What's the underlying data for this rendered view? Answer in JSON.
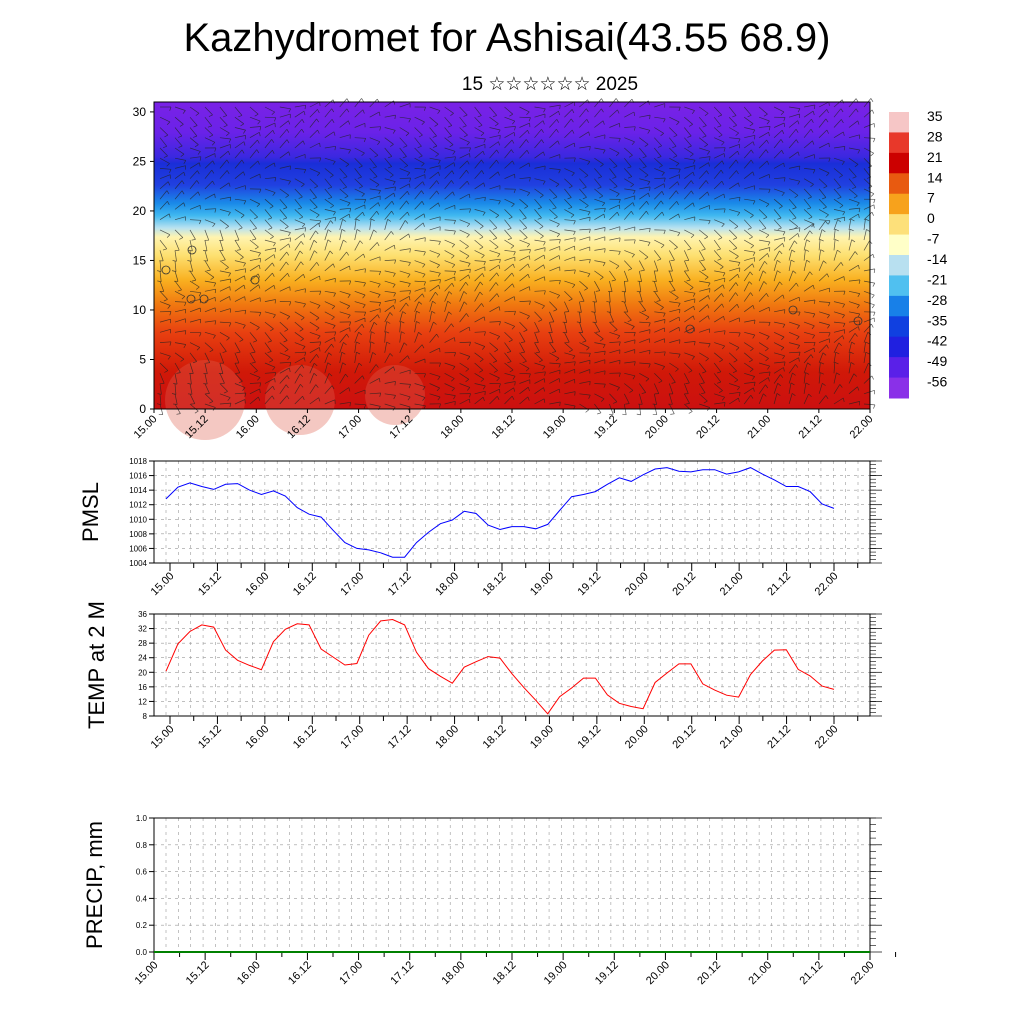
{
  "title": "Kazhydromet for Ashisai(43.55 68.9)",
  "subtitle": "15 ☆☆☆☆☆☆ 2025",
  "chart_data": [
    {
      "type": "heatmap",
      "description_variable": "temperature cross-section with wind barbs",
      "x_tick_labels": [
        "15.00",
        "15.12",
        "16.00",
        "16.12",
        "17.00",
        "17.12",
        "18.00",
        "18.12",
        "19.00",
        "19.12",
        "20.00",
        "20.12",
        "21.00",
        "21.12",
        "22.00"
      ],
      "y_ticks": [
        0,
        5,
        10,
        15,
        20,
        25,
        30
      ],
      "ylim": [
        0,
        31
      ],
      "colorbar_labels": [
        "35",
        "28",
        "21",
        "14",
        "7",
        "0",
        "-7",
        "-14",
        "-21",
        "-28",
        "-35",
        "-42",
        "-49",
        "-56"
      ],
      "colors": [
        "#f6c6c6",
        "#e8382a",
        "#cc0000",
        "#e85a10",
        "#f7a21c",
        "#fde07a",
        "#ffffc8",
        "#b8e0f0",
        "#50c0f0",
        "#1880e8",
        "#1040e0",
        "#2020e0",
        "#5a20e8",
        "#8a30e8"
      ]
    },
    {
      "type": "line",
      "ylabel": "PMSL",
      "x_tick_labels": [
        "15.00",
        "15.12",
        "16.00",
        "16.12",
        "17.00",
        "17.12",
        "18.00",
        "18.12",
        "19.00",
        "19.12",
        "20.00",
        "20.12",
        "21.00",
        "21.12",
        "22.00"
      ],
      "y_ticks": [
        1004,
        1006,
        1008,
        1010,
        1012,
        1014,
        1016,
        1018
      ],
      "ylim": [
        1004,
        1018
      ],
      "series": [
        {
          "color": "#0000ff",
          "values": [
            1012.8,
            1014.4,
            1015.0,
            1014.5,
            1014.1,
            1014.8,
            1014.9,
            1014.0,
            1013.4,
            1013.9,
            1013.2,
            1011.6,
            1010.7,
            1010.3,
            1008.5,
            1006.8,
            1006.0,
            1005.8,
            1005.4,
            1004.8,
            1004.8,
            1006.8,
            1008.2,
            1009.4,
            1009.9,
            1011.1,
            1010.8,
            1009.2,
            1008.6,
            1009.0,
            1009.0,
            1008.7,
            1009.3,
            1011.2,
            1013.1,
            1013.4,
            1013.8,
            1014.8,
            1015.7,
            1015.2,
            1016.1,
            1016.9,
            1017.1,
            1016.6,
            1016.5,
            1016.8,
            1016.8,
            1016.2,
            1016.5,
            1017.1,
            1016.2,
            1015.4,
            1014.5,
            1014.5,
            1013.8,
            1012.1,
            1011.5
          ]
        }
      ]
    },
    {
      "type": "line",
      "ylabel": "TEMP at 2 M",
      "x_tick_labels": [
        "15.00",
        "15.12",
        "16.00",
        "16.12",
        "17.00",
        "17.12",
        "18.00",
        "18.12",
        "19.00",
        "19.12",
        "20.00",
        "20.12",
        "21.00",
        "21.12",
        "22.00"
      ],
      "y_ticks": [
        8,
        12,
        16,
        20,
        24,
        28,
        32,
        36
      ],
      "ylim": [
        8,
        36
      ],
      "series": [
        {
          "color": "#ff0000",
          "values": [
            20.3,
            27.8,
            31.2,
            33.0,
            32.4,
            26.1,
            23.3,
            21.9,
            20.7,
            28.4,
            31.8,
            33.3,
            33.0,
            26.4,
            24.2,
            22.0,
            22.4,
            30.2,
            34.1,
            34.5,
            33.0,
            25.5,
            21.0,
            18.9,
            17.0,
            21.4,
            22.9,
            24.3,
            23.9,
            19.6,
            15.8,
            12.3,
            8.6,
            13.3,
            15.7,
            18.4,
            18.4,
            13.8,
            11.5,
            10.6,
            10.0,
            17.2,
            19.8,
            22.3,
            22.3,
            16.8,
            15.1,
            13.7,
            13.2,
            19.4,
            23.1,
            26.1,
            26.2,
            20.8,
            19.0,
            16.2,
            15.3
          ]
        }
      ]
    },
    {
      "type": "line",
      "ylabel": "PRECIP, mm",
      "x_tick_labels": [
        "15.00",
        "15.12",
        "16.00",
        "16.12",
        "17.00",
        "17.12",
        "18.00",
        "18.12",
        "19.00",
        "19.12",
        "20.00",
        "20.12",
        "21.00",
        "21.12",
        "22.00"
      ],
      "y_ticks": [
        0.0,
        0.2,
        0.4,
        0.6,
        0.8,
        1.0
      ],
      "y_tick_labels": [
        "0.0",
        "0.2",
        "0.4",
        "0.6",
        "0.8",
        "1.0"
      ],
      "ylim": [
        0,
        1
      ],
      "series": [
        {
          "color": "#008000",
          "values": [
            0,
            0,
            0,
            0,
            0,
            0,
            0,
            0,
            0,
            0,
            0,
            0,
            0,
            0,
            0,
            0,
            0,
            0,
            0,
            0,
            0,
            0,
            0,
            0,
            0,
            0,
            0,
            0,
            0,
            0,
            0,
            0,
            0,
            0,
            0,
            0,
            0,
            0,
            0,
            0,
            0,
            0,
            0,
            0,
            0,
            0,
            0,
            0,
            0,
            0,
            0,
            0,
            0,
            0,
            0,
            0,
            0
          ]
        }
      ]
    }
  ]
}
